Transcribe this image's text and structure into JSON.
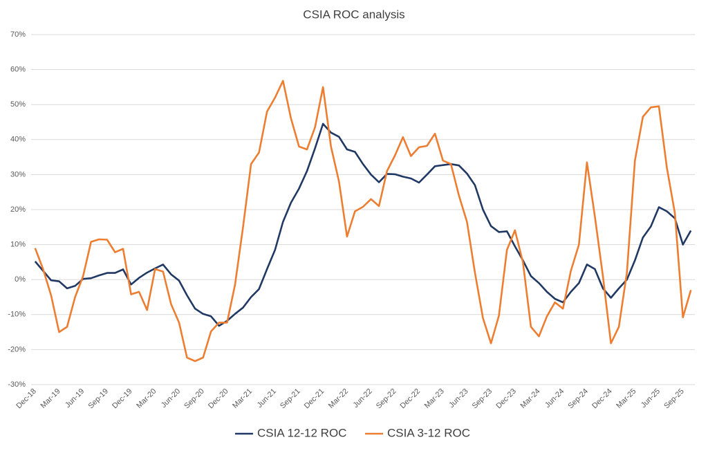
{
  "chart_data": {
    "type": "line",
    "title": "CSIA ROC analysis",
    "categories": [
      "Dec-18",
      null,
      null,
      "Mar-19",
      null,
      null,
      "Jun-19",
      null,
      null,
      "Sep-19",
      null,
      null,
      "Dec-19",
      null,
      null,
      "Mar-20",
      null,
      null,
      "Jun-20",
      null,
      null,
      "Sep-20",
      null,
      null,
      "Dec-20",
      null,
      null,
      "Mar-21",
      null,
      null,
      "Jun-21",
      null,
      null,
      "Sep-21",
      null,
      null,
      "Dec-21",
      null,
      null,
      "Mar-22",
      null,
      null,
      "Jun-22",
      null,
      null,
      "Sep-22",
      null,
      null,
      "Dec-22",
      null,
      null,
      "Mar-23",
      null,
      null,
      "Jun-23",
      null,
      null,
      "Sep-23",
      null,
      null,
      "Dec-23",
      null,
      null,
      "Mar-24",
      null,
      null,
      "Jun-24",
      null,
      null,
      "Sep-24",
      null,
      null,
      "Dec-24",
      null,
      null,
      "Mar-25",
      null,
      null,
      "Jun-25",
      null,
      null,
      "Sep-25",
      null
    ],
    "series": [
      {
        "name": "CSIA 12-12 ROC",
        "color": "#203864",
        "values": [
          5.2,
          2.5,
          -0.2,
          -0.5,
          -2.5,
          -1.8,
          0.2,
          0.4,
          1.2,
          1.9,
          1.9,
          2.9,
          -1.4,
          0.5,
          2,
          3.2,
          4.3,
          1.5,
          -0.3,
          -4.5,
          -8.3,
          -9.8,
          -10.5,
          -13.2,
          -11.8,
          -9.8,
          -8,
          -5,
          -2.7,
          3,
          8.5,
          16.5,
          22,
          26,
          31,
          37.5,
          44.5,
          42,
          40.8,
          37.2,
          36.5,
          33,
          30,
          27.8,
          30.2,
          30.1,
          29.4,
          28.9,
          27.7,
          30,
          32.4,
          32.7,
          33,
          32.6,
          30.3,
          27,
          20,
          15.3,
          13.6,
          13.8,
          9.5,
          5.5,
          1,
          -1,
          -3.5,
          -5.5,
          -6.5,
          -3.5,
          -1,
          4.3,
          3,
          -2.5,
          -5.2,
          -2.5,
          0,
          5.5,
          12,
          15.2,
          20.7,
          19.5,
          17.5,
          10,
          14
        ]
      },
      {
        "name": "CSIA 3-12 ROC",
        "color": "#ed7d31",
        "values": [
          9,
          3,
          -4.5,
          -15,
          -13.5,
          -5,
          1,
          10.8,
          11.5,
          11.4,
          7.8,
          8.8,
          -4.2,
          -3.5,
          -8.7,
          3,
          2.3,
          -7,
          -12.3,
          -22.3,
          -23.3,
          -22.3,
          -14.8,
          -12.3,
          -12.3,
          -1.5,
          15,
          33,
          36.3,
          48,
          52,
          56.8,
          46,
          38,
          37.2,
          43.5,
          55,
          38,
          28,
          12.3,
          19.5,
          20.8,
          23,
          21,
          31,
          35.5,
          40.7,
          35.3,
          37.8,
          38.2,
          41.7,
          34,
          33,
          24,
          16.5,
          2,
          -11,
          -18.2,
          -10.3,
          8.5,
          14.1,
          5,
          -13.5,
          -16.2,
          -10.5,
          -6.5,
          -8.3,
          2.5,
          10,
          33.5,
          18,
          1,
          -18.2,
          -13.5,
          2,
          34,
          46.5,
          49.2,
          49.5,
          32,
          19,
          -10.8,
          -3
        ]
      }
    ],
    "ylim": [
      -30,
      70
    ],
    "yticks": [
      {
        "value": -30,
        "label": "-30%"
      },
      {
        "value": -20,
        "label": "-20%"
      },
      {
        "value": -10,
        "label": "-10%"
      },
      {
        "value": 0,
        "label": "0%"
      },
      {
        "value": 10,
        "label": "10%"
      },
      {
        "value": 20,
        "label": "20%"
      },
      {
        "value": 30,
        "label": "30%"
      },
      {
        "value": 40,
        "label": "40%"
      },
      {
        "value": 50,
        "label": "50%"
      },
      {
        "value": 60,
        "label": "60%"
      },
      {
        "value": 70,
        "label": "70%"
      }
    ],
    "grid": true,
    "legend": "bottom"
  }
}
